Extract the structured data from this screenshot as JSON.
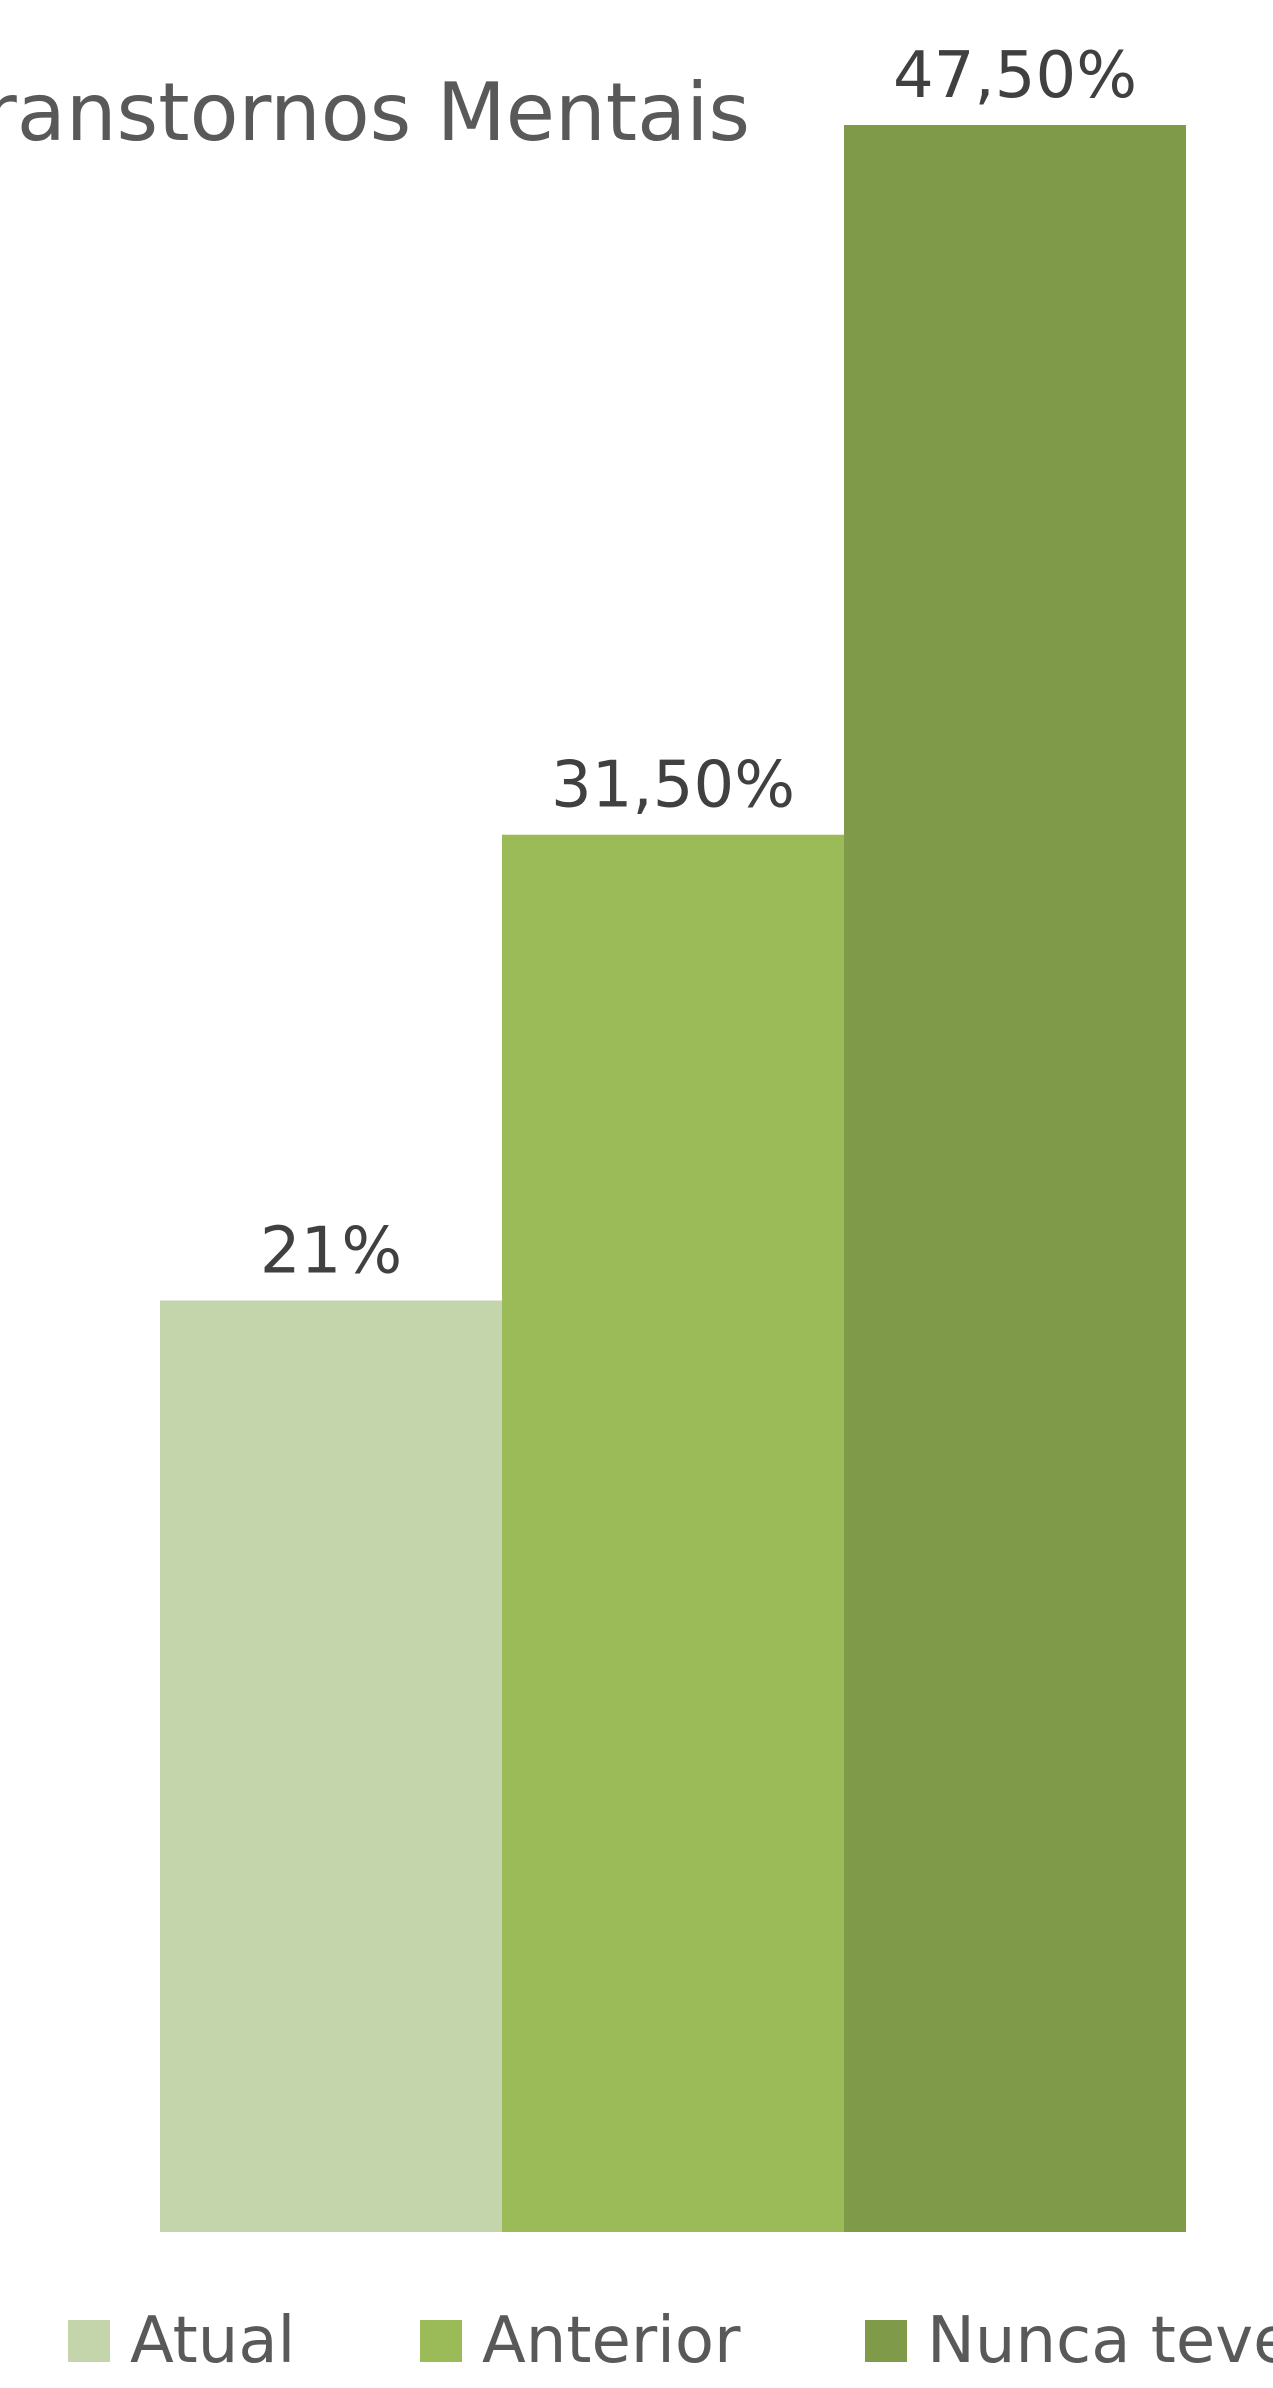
{
  "chart_data": {
    "type": "bar",
    "title": "Transtornos Mentais",
    "xlabel": "",
    "ylabel": "",
    "ylim": [
      0,
      47.5
    ],
    "grid": false,
    "legend_position": "bottom",
    "categories": [
      ""
    ],
    "series": [
      {
        "name": "Atual",
        "values": [
          21
        ],
        "data_label": "21%",
        "color": "#c5d5ab"
      },
      {
        "name": "Anterior",
        "values": [
          31.5
        ],
        "data_label": "31,50%",
        "color": "#9bbb59"
      },
      {
        "name": "Nunca teve",
        "values": [
          47.5
        ],
        "data_label": "47,50%",
        "color": "#7f9b4a"
      }
    ]
  }
}
